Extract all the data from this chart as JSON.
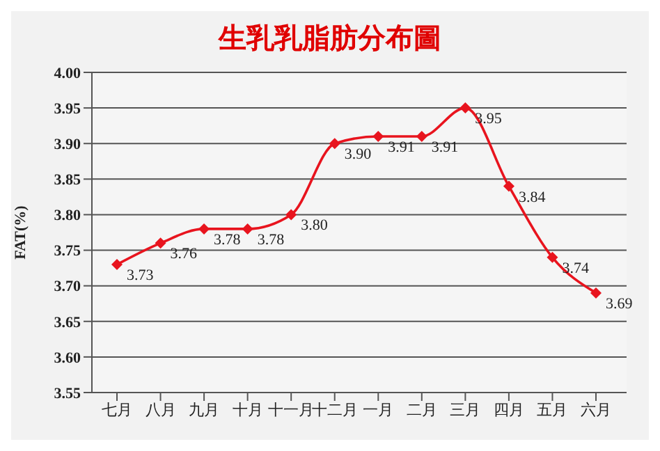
{
  "chart_data": {
    "type": "line",
    "title": "生乳乳脂肪分布圖",
    "ylabel": "FAT(%)",
    "categories": [
      "七月",
      "八月",
      "九月",
      "十月",
      "十一月",
      "十二月",
      "一月",
      "二月",
      "三月",
      "四月",
      "五月",
      "六月"
    ],
    "series": [
      {
        "color": "#e8141e",
        "values": [
          3.73,
          3.76,
          3.78,
          3.78,
          3.8,
          3.9,
          3.91,
          3.91,
          3.95,
          3.84,
          3.74,
          3.69
        ],
        "value_labels": [
          "3.73",
          "3.76",
          "3.78",
          "3.78",
          "3.80",
          "3.90",
          "3.91",
          "3.91",
          "3.95",
          "3.84",
          "3.74",
          "3.69"
        ]
      }
    ],
    "ylim": [
      3.55,
      4
    ],
    "yticks": [
      {
        "value": 3.55,
        "label": "3.55"
      },
      {
        "value": 3.6,
        "label": "3.60"
      },
      {
        "value": 3.65,
        "label": "3.65"
      },
      {
        "value": 3.7,
        "label": "3.70"
      },
      {
        "value": 3.75,
        "label": "3.75"
      },
      {
        "value": 3.8,
        "label": "3.80"
      },
      {
        "value": 3.85,
        "label": "3.85"
      },
      {
        "value": 3.9,
        "label": "3.90"
      },
      {
        "value": 3.95,
        "label": "3.95"
      },
      {
        "value": 4,
        "label": "4.00"
      }
    ],
    "grid": "y",
    "marker": "diamond",
    "line_style": "solid"
  }
}
